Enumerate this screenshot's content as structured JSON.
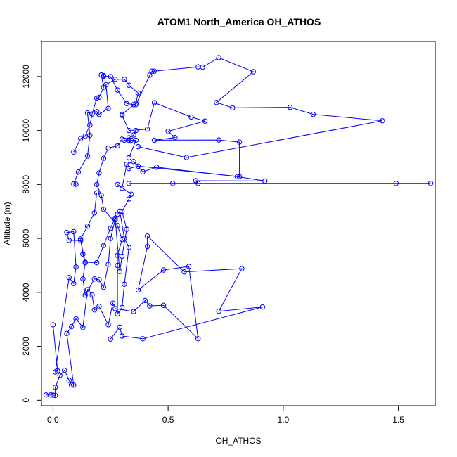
{
  "chart_data": {
    "type": "line",
    "title": "ATOM1 North_America OH_ATHOS",
    "xlabel": "OH_ATHOS",
    "ylabel": "Altitude (m)",
    "xlim": [
      -0.05,
      1.66
    ],
    "ylim": [
      -200,
      13300
    ],
    "xticks": [
      0,
      0.5,
      1,
      1.5
    ],
    "xtick_labels": [
      "0.0",
      "0.5",
      "1.0",
      "1.5"
    ],
    "yticks": [
      0,
      2000,
      4000,
      6000,
      8000,
      10000,
      12000
    ],
    "ytick_labels": [
      "0",
      "2000",
      "4000",
      "6000",
      "8000",
      "10000",
      "12000"
    ],
    "grid": false,
    "series": [
      {
        "color": "#0000ff",
        "points": [
          [
            -0.03,
            200
          ],
          [
            -0.01,
            200
          ],
          [
            0.0,
            190
          ],
          [
            0.01,
            180
          ],
          [
            0.01,
            480
          ],
          [
            0.03,
            920
          ],
          [
            0.05,
            1110
          ],
          [
            0.07,
            740
          ],
          [
            0.08,
            570
          ],
          [
            0.09,
            560
          ],
          [
            0.06,
            2480
          ],
          [
            0.08,
            2730
          ],
          [
            0.1,
            3020
          ],
          [
            0.13,
            2700
          ],
          [
            0.15,
            4100
          ],
          [
            0.17,
            3900
          ],
          [
            0.18,
            3350
          ],
          [
            0.2,
            3480
          ],
          [
            0.24,
            2800
          ],
          [
            0.26,
            3600
          ],
          [
            0.27,
            3400
          ],
          [
            0.35,
            3290
          ],
          [
            0.4,
            3700
          ],
          [
            0.42,
            3500
          ],
          [
            0.48,
            3520
          ],
          [
            0.63,
            2280
          ],
          [
            0.59,
            4960
          ],
          [
            0.48,
            4830
          ],
          [
            0.37,
            4090
          ],
          [
            0.41,
            5700
          ],
          [
            0.41,
            6090
          ],
          [
            0.57,
            4760
          ],
          [
            0.82,
            4880
          ],
          [
            0.72,
            3300
          ],
          [
            0.91,
            3460
          ],
          [
            0.39,
            2280
          ],
          [
            0.3,
            2380
          ],
          [
            0.29,
            2710
          ],
          [
            0.25,
            2270
          ]
        ]
      },
      {
        "color": "#0000ff",
        "points": [
          [
            0.0,
            2800
          ],
          [
            0.02,
            1090
          ],
          [
            0.01,
            1050
          ],
          [
            0.07,
            4550
          ],
          [
            0.09,
            4330
          ],
          [
            0.1,
            4940
          ],
          [
            0.09,
            6250
          ],
          [
            0.06,
            6220
          ],
          [
            0.07,
            5930
          ],
          [
            0.12,
            5920
          ],
          [
            0.14,
            5120
          ],
          [
            0.19,
            5100
          ],
          [
            0.22,
            5740
          ],
          [
            0.25,
            6380
          ],
          [
            0.27,
            6750
          ],
          [
            0.29,
            4770
          ],
          [
            0.3,
            5340
          ],
          [
            0.32,
            6340
          ],
          [
            0.3,
            7000
          ],
          [
            0.33,
            7460
          ],
          [
            0.34,
            7640
          ],
          [
            0.28,
            8000
          ],
          [
            0.3,
            7860
          ],
          [
            0.32,
            8750
          ],
          [
            0.35,
            8850
          ],
          [
            0.39,
            8470
          ],
          [
            0.45,
            8640
          ],
          [
            0.8,
            8290
          ],
          [
            0.92,
            8130
          ],
          [
            0.62,
            8140
          ],
          [
            0.63,
            8040
          ],
          [
            1.49,
            8040
          ],
          [
            1.64,
            8040
          ],
          [
            0.52,
            8040
          ],
          [
            0.33,
            8040
          ]
        ]
      },
      {
        "color": "#0000ff",
        "points": [
          [
            0.1,
            8010
          ],
          [
            0.09,
            8020
          ],
          [
            0.11,
            8460
          ],
          [
            0.15,
            9050
          ],
          [
            0.16,
            9820
          ],
          [
            0.15,
            10650
          ],
          [
            0.19,
            10700
          ],
          [
            0.2,
            10600
          ],
          [
            0.24,
            10820
          ],
          [
            0.23,
            11700
          ],
          [
            0.27,
            11900
          ],
          [
            0.31,
            11900
          ],
          [
            0.33,
            11680
          ],
          [
            0.37,
            11390
          ],
          [
            0.36,
            11010
          ],
          [
            0.3,
            10600
          ],
          [
            0.3,
            10560
          ],
          [
            0.33,
            10000
          ],
          [
            0.41,
            10050
          ],
          [
            0.44,
            11030
          ],
          [
            0.6,
            10500
          ],
          [
            0.66,
            10350
          ],
          [
            0.5,
            9970
          ],
          [
            0.53,
            9740
          ],
          [
            0.44,
            9640
          ],
          [
            0.72,
            9650
          ],
          [
            0.81,
            9570
          ],
          [
            0.81,
            8290
          ],
          [
            0.37,
            8680
          ],
          [
            0.33,
            8590
          ],
          [
            0.33,
            8990
          ],
          [
            0.36,
            9640
          ],
          [
            0.34,
            9640
          ],
          [
            0.33,
            9640
          ],
          [
            0.31,
            9640
          ]
        ]
      },
      {
        "color": "#0000ff",
        "points": [
          [
            0.09,
            9200
          ],
          [
            0.12,
            9700
          ],
          [
            0.14,
            9790
          ],
          [
            0.16,
            10200
          ],
          [
            0.17,
            10610
          ],
          [
            0.19,
            11200
          ],
          [
            0.2,
            11230
          ],
          [
            0.22,
            11600
          ],
          [
            0.21,
            12060
          ],
          [
            0.22,
            12030
          ],
          [
            0.22,
            12010
          ],
          [
            0.25,
            12000
          ],
          [
            0.28,
            11500
          ],
          [
            0.32,
            11000
          ],
          [
            0.35,
            10960
          ],
          [
            0.36,
            10960
          ],
          [
            0.42,
            12050
          ],
          [
            0.43,
            12200
          ],
          [
            0.44,
            12200
          ],
          [
            0.63,
            12360
          ],
          [
            0.65,
            12350
          ],
          [
            0.72,
            12700
          ],
          [
            0.87,
            12180
          ],
          [
            0.71,
            11040
          ],
          [
            0.78,
            10840
          ],
          [
            1.03,
            10860
          ],
          [
            1.13,
            10600
          ],
          [
            1.43,
            10360
          ],
          [
            0.58,
            9000
          ],
          [
            0.37,
            9400
          ]
        ]
      },
      {
        "color": "#0000ff",
        "points": [
          [
            0.19,
            7690
          ],
          [
            0.18,
            6950
          ],
          [
            0.15,
            6450
          ],
          [
            0.12,
            5980
          ],
          [
            0.13,
            5420
          ],
          [
            0.14,
            5100
          ],
          [
            0.13,
            4500
          ],
          [
            0.14,
            3900
          ],
          [
            0.18,
            4500
          ],
          [
            0.2,
            4470
          ],
          [
            0.22,
            4190
          ],
          [
            0.24,
            5040
          ],
          [
            0.25,
            6000
          ],
          [
            0.27,
            6690
          ],
          [
            0.28,
            6900
          ],
          [
            0.29,
            7010
          ],
          [
            0.31,
            6000
          ],
          [
            0.33,
            5670
          ],
          [
            0.31,
            4300
          ],
          [
            0.3,
            3440
          ],
          [
            0.28,
            3200
          ],
          [
            0.28,
            5000
          ],
          [
            0.28,
            5370
          ],
          [
            0.3,
            5960
          ],
          [
            0.28,
            6480
          ],
          [
            0.22,
            7080
          ],
          [
            0.21,
            7600
          ],
          [
            0.19,
            8000
          ],
          [
            0.2,
            8430
          ],
          [
            0.22,
            8970
          ],
          [
            0.24,
            9350
          ],
          [
            0.28,
            9430
          ],
          [
            0.3,
            9680
          ],
          [
            0.33,
            9730
          ],
          [
            0.35,
            9830
          ],
          [
            0.36,
            10000
          ]
        ]
      }
    ]
  }
}
